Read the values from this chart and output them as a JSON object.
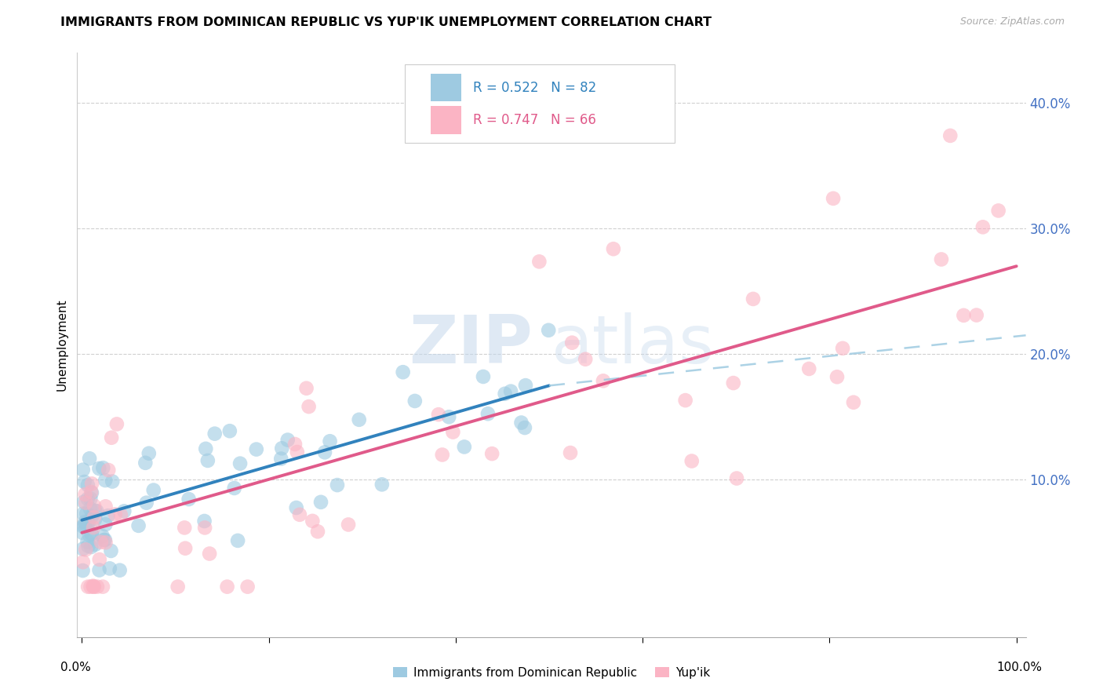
{
  "title": "IMMIGRANTS FROM DOMINICAN REPUBLIC VS YUP'IK UNEMPLOYMENT CORRELATION CHART",
  "source": "Source: ZipAtlas.com",
  "ylabel": "Unemployment",
  "legend_label1": "Immigrants from Dominican Republic",
  "legend_label2": "Yup'ik",
  "legend_r1": "R = 0.522",
  "legend_n1": "N = 82",
  "legend_r2": "R = 0.747",
  "legend_n2": "N = 66",
  "blue_scatter_color": "#9ecae1",
  "pink_scatter_color": "#fbb4c4",
  "blue_line_color": "#3182bd",
  "pink_line_color": "#e05a8a",
  "blue_dash_color": "#9ecae1",
  "xlim": [
    -0.005,
    1.01
  ],
  "ylim": [
    -0.025,
    0.44
  ],
  "blue_fit": [
    0.0,
    0.068,
    0.5,
    0.175
  ],
  "blue_dash": [
    0.5,
    0.175,
    1.01,
    0.215
  ],
  "pink_fit": [
    0.0,
    0.058,
    1.0,
    0.27
  ],
  "ytick_positions": [
    0.0,
    0.1,
    0.2,
    0.3,
    0.4
  ],
  "ytick_labels_right": [
    "",
    "10.0%",
    "20.0%",
    "30.0%",
    "40.0%"
  ],
  "xtick_positions": [
    0.0,
    0.2,
    0.4,
    0.6,
    0.8,
    1.0
  ],
  "background_color": "#ffffff",
  "grid_color": "#d0d0d0",
  "right_axis_color": "#4472c4",
  "watermark_zip": "ZIP",
  "watermark_atlas": "atlas"
}
